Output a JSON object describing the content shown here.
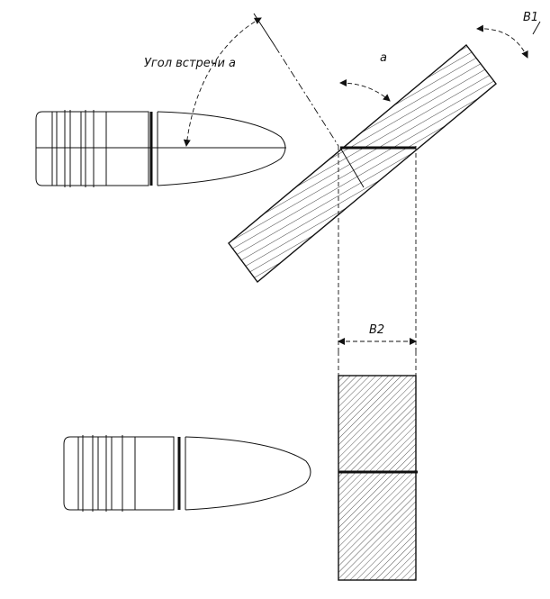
{
  "diagram": {
    "labels": {
      "impact_angle": "Угол встречи a",
      "angle_a": "a",
      "b1": "B1",
      "b2": "B2"
    },
    "colors": {
      "line": "#111111",
      "background": "#ffffff"
    }
  }
}
